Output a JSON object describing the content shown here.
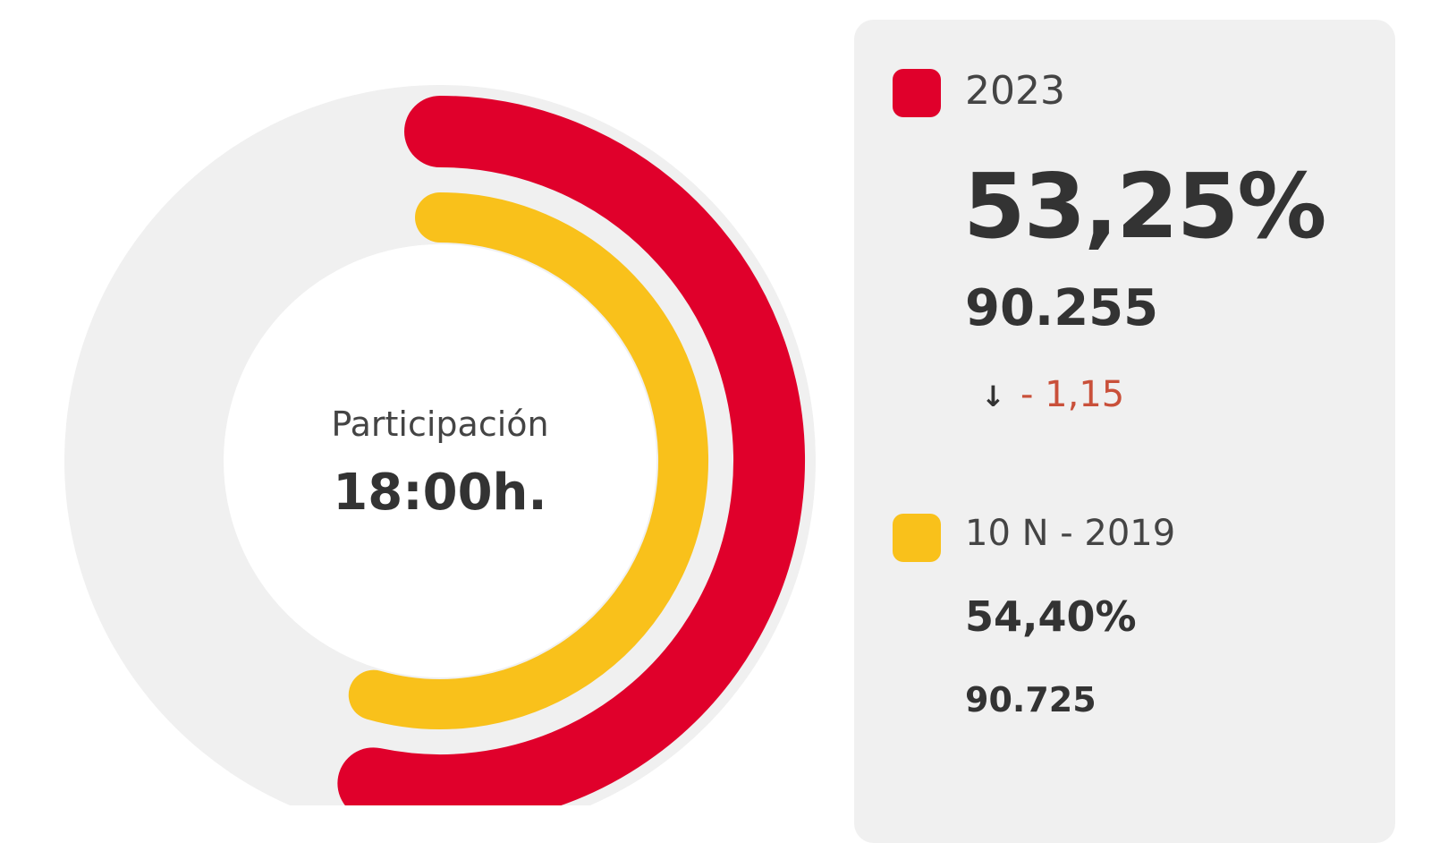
{
  "chart_data": {
    "type": "radial-bar",
    "title": "Participación",
    "subtitle": "18:00h.",
    "range": [
      0,
      100
    ],
    "series": [
      {
        "name": "2023",
        "value": 53.25,
        "value_label": "53,25%",
        "votes": "90.255",
        "color": "#e0002b",
        "change": "- 1,15",
        "change_direction": "down"
      },
      {
        "name": "10 N - 2019",
        "value": 54.4,
        "value_label": "54,40%",
        "votes": "90.725",
        "color": "#f9c11b"
      }
    ],
    "track_color": "#f0f0f0",
    "change_color": "#c9503a"
  }
}
